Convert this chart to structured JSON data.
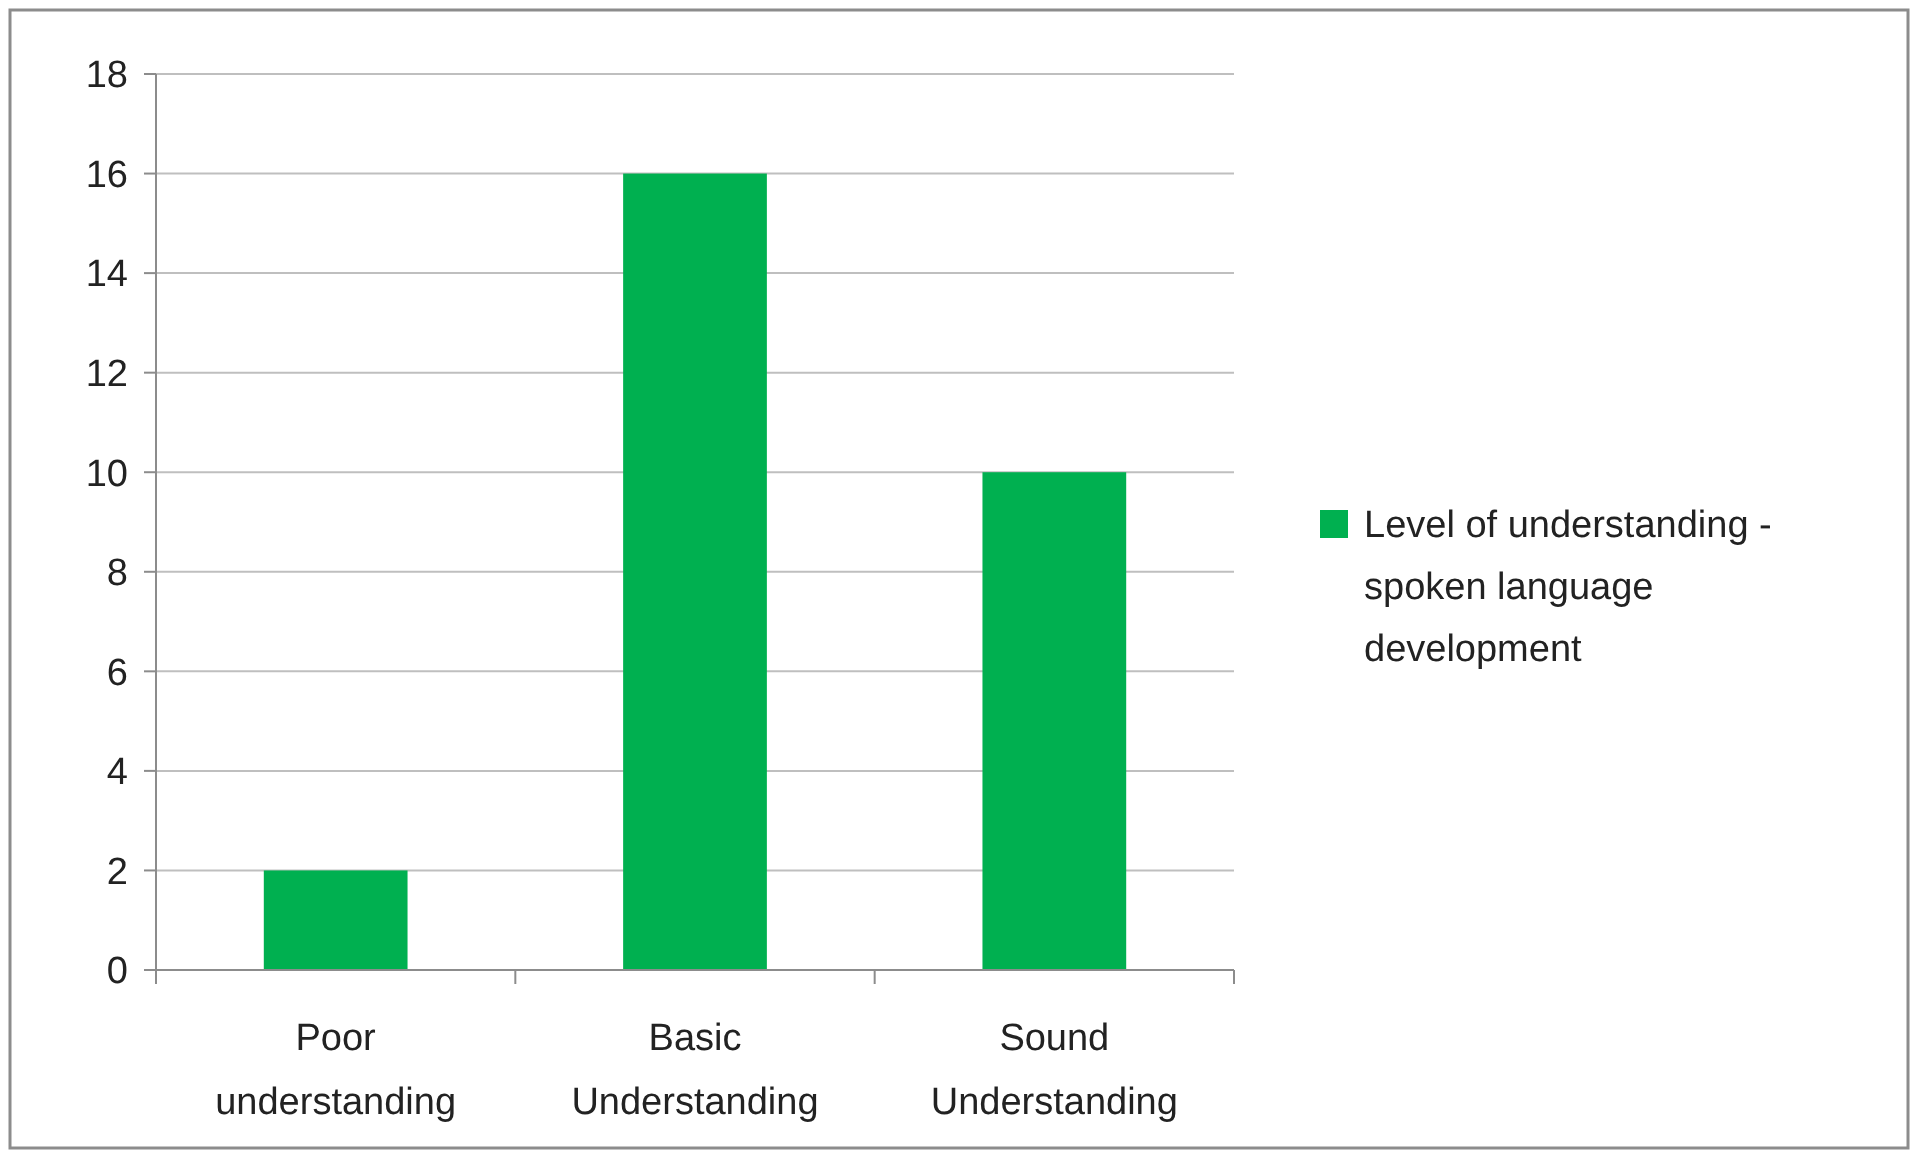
{
  "chart_data": {
    "type": "bar",
    "categories": [
      "Poor understanding",
      "Basic Understanding",
      "Sound Understanding"
    ],
    "series": [
      {
        "name": "Level of understanding - spoken language development",
        "color": "#00b050",
        "values": [
          2,
          16,
          10
        ]
      }
    ],
    "ylim": [
      0,
      18
    ],
    "yticks": [
      0,
      2,
      4,
      6,
      8,
      10,
      12,
      14,
      16,
      18
    ],
    "grid": "y",
    "legend": "right"
  }
}
